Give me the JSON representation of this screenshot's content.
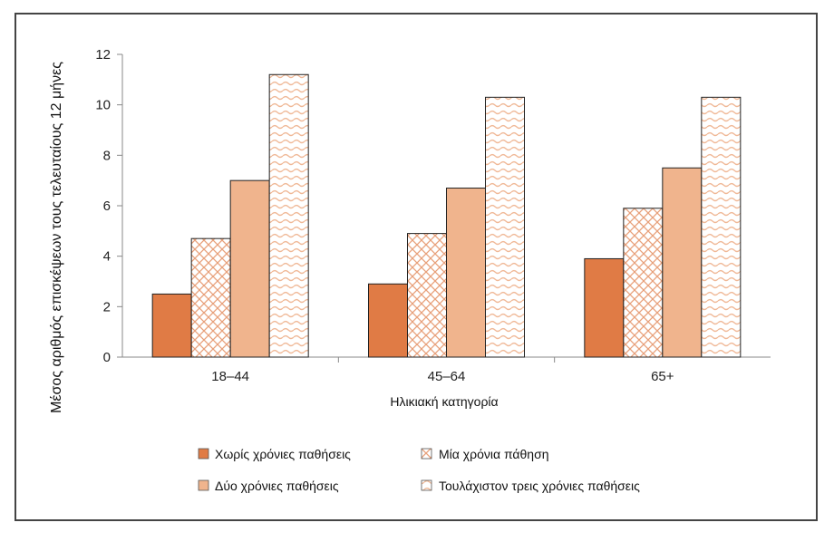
{
  "chart_data": {
    "type": "bar",
    "title": "",
    "xlabel": "Ηλικιακή κατηγορία",
    "ylabel": "Μέσος αριθμός επισκέψεων τους τελευταίους 12 μήνες",
    "ylim": [
      0,
      12
    ],
    "yticks": [
      0,
      2,
      4,
      6,
      8,
      10,
      12
    ],
    "categories": [
      "18–44",
      "45–64",
      "65+"
    ],
    "grid": false,
    "legend_position": "bottom",
    "series": [
      {
        "name": "Χωρίς χρόνιες παθήσεις",
        "values": [
          2.5,
          2.9,
          3.9
        ],
        "color": "#e07b45",
        "pattern": "solid"
      },
      {
        "name": "Μία χρόνια πάθηση",
        "values": [
          4.7,
          4.9,
          5.9
        ],
        "color": "#e8a07a",
        "pattern": "crosshatch"
      },
      {
        "name": "Δύο χρόνιες παθήσεις",
        "values": [
          7.0,
          6.7,
          7.5
        ],
        "color": "#f0b48d",
        "pattern": "light-solid"
      },
      {
        "name": "Τουλάχιστον τρεις χρόνιες παθήσεις",
        "values": [
          11.2,
          10.3,
          10.3
        ],
        "color": "#f3c7a6",
        "pattern": "wave"
      }
    ]
  }
}
